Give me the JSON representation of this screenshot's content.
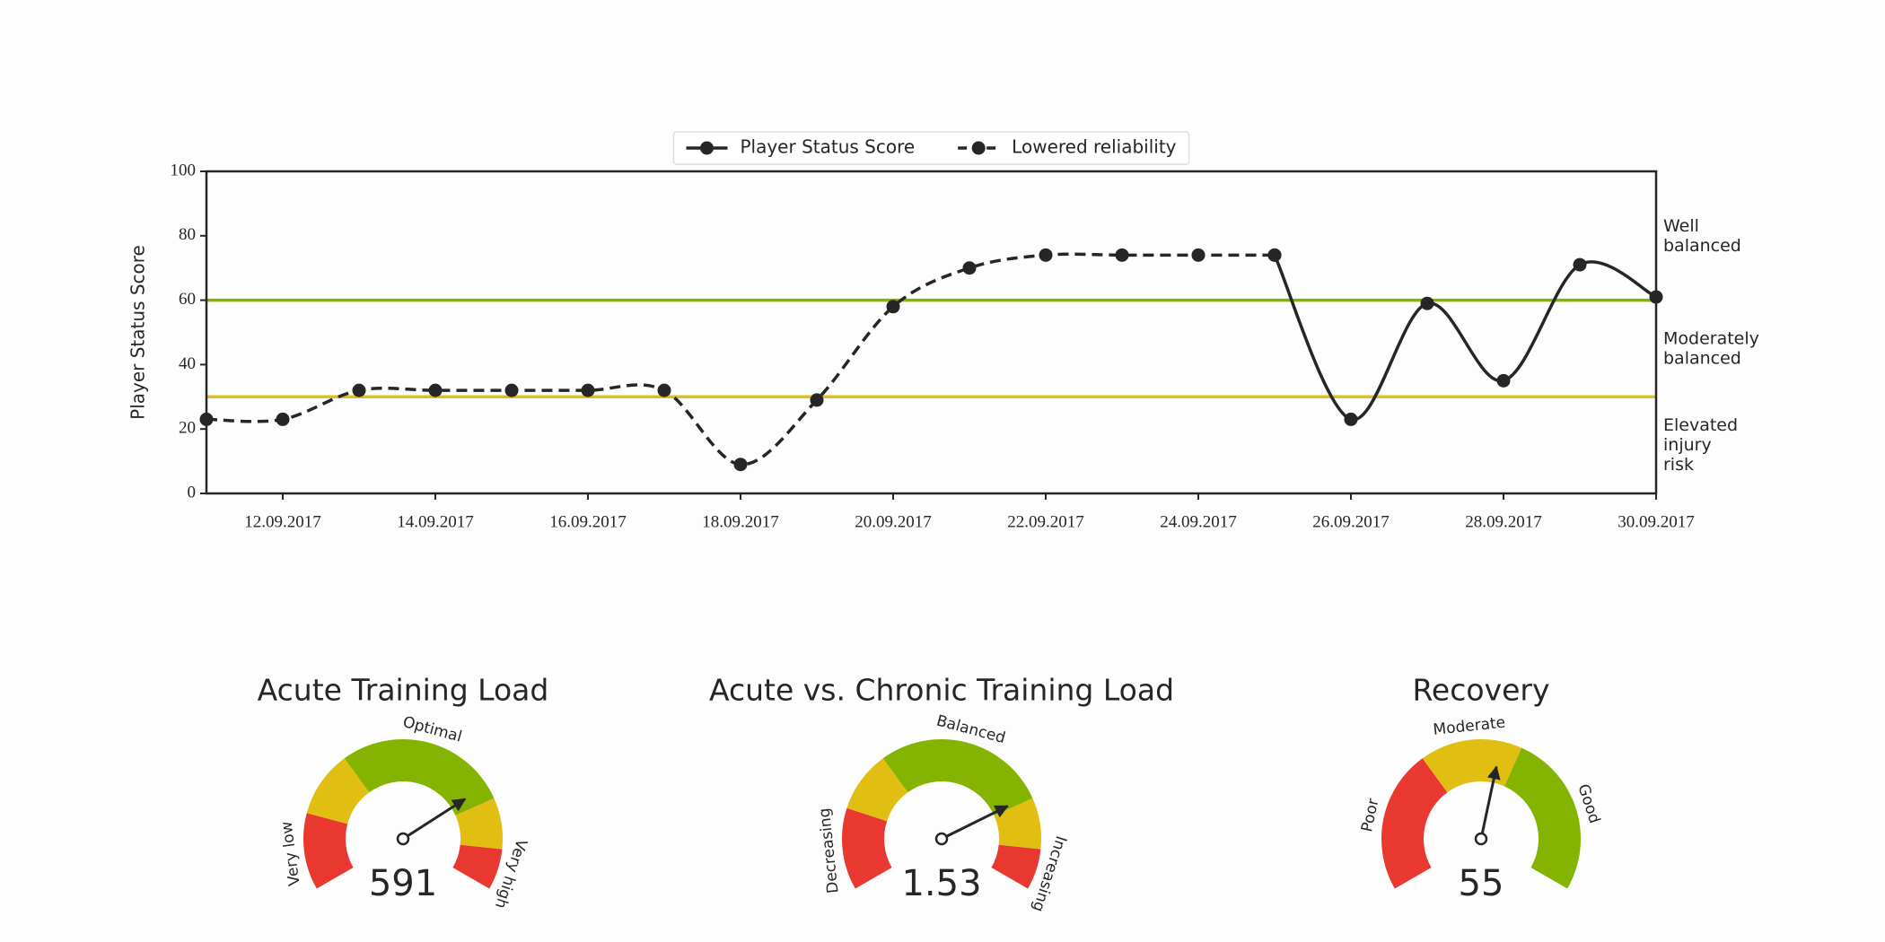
{
  "chart_data": [
    {
      "type": "line",
      "ylabel": "Player Status Score",
      "x": [
        "2017-09-11",
        "2017-09-12",
        "2017-09-13",
        "2017-09-14",
        "2017-09-15",
        "2017-09-16",
        "2017-09-17",
        "2017-09-18",
        "2017-09-19",
        "2017-09-20",
        "2017-09-21",
        "2017-09-22",
        "2017-09-23",
        "2017-09-24",
        "2017-09-25",
        "2017-09-26",
        "2017-09-27",
        "2017-09-28",
        "2017-09-29",
        "2017-09-30"
      ],
      "xlim": [
        "2017-09-11",
        "2017-09-30"
      ],
      "xticks": [
        {
          "value": "2017-09-12",
          "label": "12.09.2017"
        },
        {
          "value": "2017-09-14",
          "label": "14.09.2017"
        },
        {
          "value": "2017-09-16",
          "label": "16.09.2017"
        },
        {
          "value": "2017-09-18",
          "label": "18.09.2017"
        },
        {
          "value": "2017-09-20",
          "label": "20.09.2017"
        },
        {
          "value": "2017-09-22",
          "label": "22.09.2017"
        },
        {
          "value": "2017-09-24",
          "label": "24.09.2017"
        },
        {
          "value": "2017-09-26",
          "label": "26.09.2017"
        },
        {
          "value": "2017-09-28",
          "label": "28.09.2017"
        },
        {
          "value": "2017-09-30",
          "label": "30.09.2017"
        }
      ],
      "ylim": [
        0,
        100
      ],
      "yticks": [
        0,
        20,
        40,
        60,
        80,
        100
      ],
      "legend": "upper center",
      "series": [
        {
          "name": "Player Status Score",
          "color": "#262626",
          "linestyle": "solid",
          "values": [
            null,
            null,
            null,
            null,
            null,
            null,
            null,
            null,
            null,
            null,
            null,
            null,
            null,
            null,
            74,
            23,
            59,
            35,
            71,
            61
          ]
        },
        {
          "name": "Lowered reliability",
          "color": "#262626",
          "linestyle": "dashed",
          "values": [
            23,
            23,
            32,
            32,
            32,
            32,
            32,
            9,
            29,
            58,
            70,
            74,
            74,
            74,
            74,
            null,
            null,
            null,
            null,
            null
          ]
        }
      ],
      "thresholds": [
        {
          "value": 30,
          "color": "#d9c21e"
        },
        {
          "value": 60,
          "color": "#84b300"
        }
      ],
      "zone_labels": [
        "Elevated injury risk",
        "Moderately balanced",
        "Well balanced"
      ]
    },
    {
      "type": "gauge",
      "title": "Acute Training Load",
      "value": 591,
      "band_edges": [
        0,
        150,
        280,
        620,
        720,
        800
      ],
      "band_colors": [
        "#e8382f",
        "#e0bf12",
        "#84b300",
        "#e0bf12",
        "#e8382f"
      ],
      "band_labels": [
        "Very low",
        null,
        "Optimal",
        null,
        "Very high"
      ]
    },
    {
      "type": "gauge",
      "title": "Acute vs. Chronic Training Load",
      "value": 1.53,
      "band_edges": [
        0,
        0.4,
        0.7,
        1.55,
        1.8,
        2
      ],
      "band_colors": [
        "#e8382f",
        "#e0bf12",
        "#84b300",
        "#e0bf12",
        "#e8382f"
      ],
      "band_labels": [
        "Decreasing",
        null,
        "Balanced",
        null,
        "Increasing"
      ]
    },
    {
      "type": "gauge",
      "title": "Recovery",
      "value": 55,
      "band_edges": [
        0,
        35,
        60,
        100
      ],
      "band_colors": [
        "#e8382f",
        "#e0bf12",
        "#84b300"
      ],
      "band_labels": [
        "Poor",
        "Moderate",
        "Good"
      ]
    }
  ]
}
